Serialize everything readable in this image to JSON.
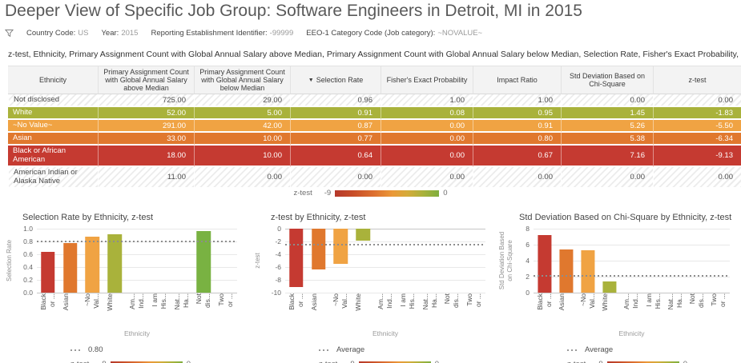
{
  "title": "Deeper View of Specific Job Group: Software Engineers in Detroit, MI in 2015",
  "filters": [
    {
      "label": "Country Code:",
      "value": "US"
    },
    {
      "label": "Year:",
      "value": "2015"
    },
    {
      "label": "Reporting Establishment Identifier:",
      "value": "-99999"
    },
    {
      "label": "EEO-1 Category Code (Job category):",
      "value": "~NOVALUE~"
    }
  ],
  "table": {
    "caption": "z-test, Ethnicity, Primary Assignment Count with Global Annual Salary above Median, Primary Assignment Count with Global Annual Salary below Median, Selection Rate, Fisher's Exact Probability, Impact Ratio, S",
    "sort_icon": "▼",
    "columns": [
      {
        "label": "Ethnicity",
        "sorted": false
      },
      {
        "label": "Primary Assignment Count with Global Annual Salary above Median",
        "sorted": false
      },
      {
        "label": "Primary Assignment Count with Global Annual Salary below Median",
        "sorted": false
      },
      {
        "label": "Selection Rate",
        "sorted": true
      },
      {
        "label": "Fisher's Exact Probability",
        "sorted": false
      },
      {
        "label": "Impact Ratio",
        "sorted": false
      },
      {
        "label": "Std Deviation Based on Chi-Square",
        "sorted": false
      },
      {
        "label": "z-test",
        "sorted": false
      }
    ],
    "rows": [
      {
        "ethnicity": "Not disclosed",
        "values": [
          "725.00",
          "29.00",
          "0.96",
          "1.00",
          "1.00",
          "0.00",
          "0.00"
        ],
        "color": null
      },
      {
        "ethnicity": "White",
        "values": [
          "52.00",
          "5.00",
          "0.91",
          "0.08",
          "0.95",
          "1.45",
          "-1.83"
        ],
        "color": "#a9b23b"
      },
      {
        "ethnicity": "~No Value~",
        "values": [
          "291.00",
          "42.00",
          "0.87",
          "0.00",
          "0.91",
          "5.26",
          "-5.50"
        ],
        "color": "#f0a343"
      },
      {
        "ethnicity": "Asian",
        "values": [
          "33.00",
          "10.00",
          "0.77",
          "0.00",
          "0.80",
          "5.38",
          "-6.34"
        ],
        "color": "#e0782e"
      },
      {
        "ethnicity": "Black or African American",
        "values": [
          "18.00",
          "10.00",
          "0.64",
          "0.00",
          "0.67",
          "7.16",
          "-9.13"
        ],
        "color": "#c53a31"
      },
      {
        "ethnicity": "American Indian or Alaska Native",
        "values": [
          "11.00",
          "0.00",
          "0.00",
          "0.00",
          "0.00",
          "0.00",
          "0.00"
        ],
        "color": null
      }
    ],
    "legend": {
      "label": "z-test",
      "min": "-9",
      "max": "0"
    }
  },
  "chart_data": [
    {
      "type": "bar",
      "title": "Selection Rate by Ethnicity, z-test",
      "ylabel_lines": [
        "Selection Rate"
      ],
      "xlabel": "Ethnicity",
      "ylim": [
        0,
        1.0
      ],
      "yticks": [
        {
          "v": 0.0,
          "label": "0.0"
        },
        {
          "v": 0.2,
          "label": "0.2"
        },
        {
          "v": 0.4,
          "label": "0.4"
        },
        {
          "v": 0.6,
          "label": "0.6"
        },
        {
          "v": 0.8,
          "label": "0.8"
        },
        {
          "v": 1.0,
          "label": "1.0"
        }
      ],
      "categories": [
        "Black or African American",
        "Asian",
        "~No Value~",
        "White",
        "American Indian or Alaska Native",
        "I am Hispanic or Latino",
        "Native Hawaiian or Other Pacific Islander",
        "Not disclosed",
        "Two or more races"
      ],
      "category_labels": [
        [
          "Black",
          "or ..."
        ],
        [
          "Asian"
        ],
        [
          "~No",
          "Val..."
        ],
        [
          "White"
        ],
        [
          "Am...",
          "Ind..."
        ],
        [
          "I am",
          "His..."
        ],
        [
          "Nat...",
          "Ha..."
        ],
        [
          "Not",
          "dis..."
        ],
        [
          "Two",
          "or ..."
        ]
      ],
      "values": [
        0.64,
        0.77,
        0.87,
        0.91,
        0,
        0,
        0,
        0.96,
        0
      ],
      "bar_colors": [
        "#c53a31",
        "#e0782e",
        "#f0a343",
        "#a9b23b",
        null,
        null,
        null,
        "#79b242",
        null
      ],
      "refline": {
        "value": 0.8,
        "legend": "0.80"
      },
      "gradient_legend": {
        "label": "z-test",
        "min": "-9",
        "max": "0"
      }
    },
    {
      "type": "bar",
      "title": "z-test by Ethnicity, z-test",
      "ylabel_lines": [
        "z-test"
      ],
      "xlabel": "Ethnicity",
      "ylim": [
        -10,
        0
      ],
      "yticks": [
        {
          "v": 0,
          "label": "0"
        },
        {
          "v": -2,
          "label": "-2"
        },
        {
          "v": -4,
          "label": "-4"
        },
        {
          "v": -6,
          "label": "-6"
        },
        {
          "v": -8,
          "label": "-8"
        },
        {
          "v": -10,
          "label": "-10"
        }
      ],
      "categories": [
        "Black or African American",
        "Asian",
        "~No Value~",
        "White",
        "American Indian or Alaska Native",
        "I am Hispanic or Latino",
        "Native Hawaiian or Other Pacific Islander",
        "Not disclosed",
        "Two or more races"
      ],
      "category_labels": [
        [
          "Black",
          "or ..."
        ],
        [
          "Asian"
        ],
        [
          "~No",
          "Val..."
        ],
        [
          "White"
        ],
        [
          "Am...",
          "Ind..."
        ],
        [
          "I am",
          "His..."
        ],
        [
          "Nat...",
          "Ha..."
        ],
        [
          "Not",
          "dis..."
        ],
        [
          "Two",
          "or ..."
        ]
      ],
      "values": [
        -9.13,
        -6.34,
        -5.5,
        -1.83,
        0,
        0,
        0,
        0,
        0
      ],
      "bar_colors": [
        "#c53a31",
        "#e0782e",
        "#f0a343",
        "#a9b23b",
        null,
        null,
        null,
        null,
        null
      ],
      "refline": {
        "value": -2.53,
        "legend": "Average"
      },
      "gradient_legend": {
        "label": "z-test",
        "min": "-9",
        "max": "0"
      }
    },
    {
      "type": "bar",
      "title": "Std Deviation Based on Chi-Square by Ethnicity, z-test",
      "ylabel_lines": [
        "Std Deviation Based",
        "on Chi-Square"
      ],
      "xlabel": "Ethnicity",
      "ylim": [
        0,
        8
      ],
      "yticks": [
        {
          "v": 0,
          "label": "0"
        },
        {
          "v": 2,
          "label": "2"
        },
        {
          "v": 4,
          "label": "4"
        },
        {
          "v": 6,
          "label": "6"
        },
        {
          "v": 8,
          "label": "8"
        }
      ],
      "categories": [
        "Black or African American",
        "Asian",
        "~No Value~",
        "White",
        "American Indian or Alaska Native",
        "I am Hispanic or Latino",
        "Native Hawaiian or Other Pacific Islander",
        "Not disclosed",
        "Two or more races"
      ],
      "category_labels": [
        [
          "Black",
          "or ..."
        ],
        [
          "Asian"
        ],
        [
          "~No",
          "Val..."
        ],
        [
          "White"
        ],
        [
          "Am...",
          "Ind..."
        ],
        [
          "I am",
          "His..."
        ],
        [
          "Nat...",
          "Ha..."
        ],
        [
          "Not",
          "dis..."
        ],
        [
          "Two",
          "or ..."
        ]
      ],
      "values": [
        7.16,
        5.38,
        5.26,
        1.45,
        0,
        0,
        0,
        0,
        0
      ],
      "bar_colors": [
        "#c53a31",
        "#e0782e",
        "#f0a343",
        "#a9b23b",
        null,
        null,
        null,
        null,
        null
      ],
      "refline": {
        "value": 2.14,
        "legend": "Average"
      },
      "gradient_legend": {
        "label": "z-test",
        "min": "-9",
        "max": "0"
      }
    }
  ],
  "colors": {
    "red": "#c53a31",
    "dark_orange": "#e0782e",
    "orange": "#f0a343",
    "olive": "#a9b23b",
    "green": "#79b242",
    "refline_gray": "#8d8d8d"
  }
}
